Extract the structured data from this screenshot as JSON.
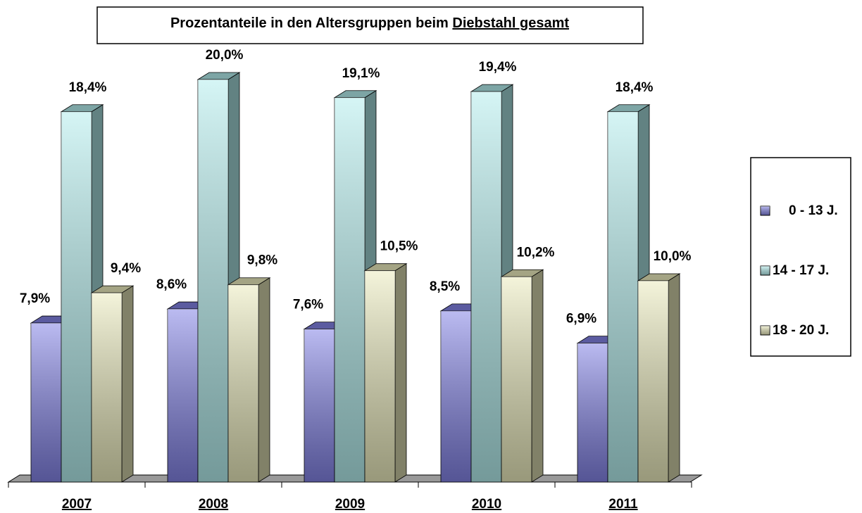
{
  "chart_data": {
    "type": "bar3d",
    "title": "Prozentanteile in den Altersgruppen beim",
    "title_emphasis": "Diebstahl gesamt",
    "categories": [
      "2007",
      "2008",
      "2009",
      "2010",
      "2011"
    ],
    "series": [
      {
        "name": "0 - 13 J.",
        "color": "#8383e6",
        "values": [
          7.9,
          8.6,
          7.6,
          8.5,
          6.9
        ],
        "value_labels": [
          "7,9%",
          "8,6%",
          "7,6%",
          "8,5%",
          "6,9%"
        ]
      },
      {
        "name": "14 - 17 J.",
        "color": "#b3eded",
        "values": [
          18.4,
          20.0,
          19.1,
          19.4,
          18.4
        ],
        "value_labels": [
          "18,4%",
          "20,0%",
          "19,1%",
          "19,4%",
          "18,4%"
        ]
      },
      {
        "name": "18 - 20 J.",
        "color": "#ebebbd",
        "values": [
          9.4,
          9.8,
          10.5,
          10.2,
          10.0
        ],
        "value_labels": [
          "9,4%",
          "9,8%",
          "10,5%",
          "10,2%",
          "10,0%"
        ]
      }
    ],
    "ylim": [
      0,
      20
    ],
    "legend": "right"
  }
}
